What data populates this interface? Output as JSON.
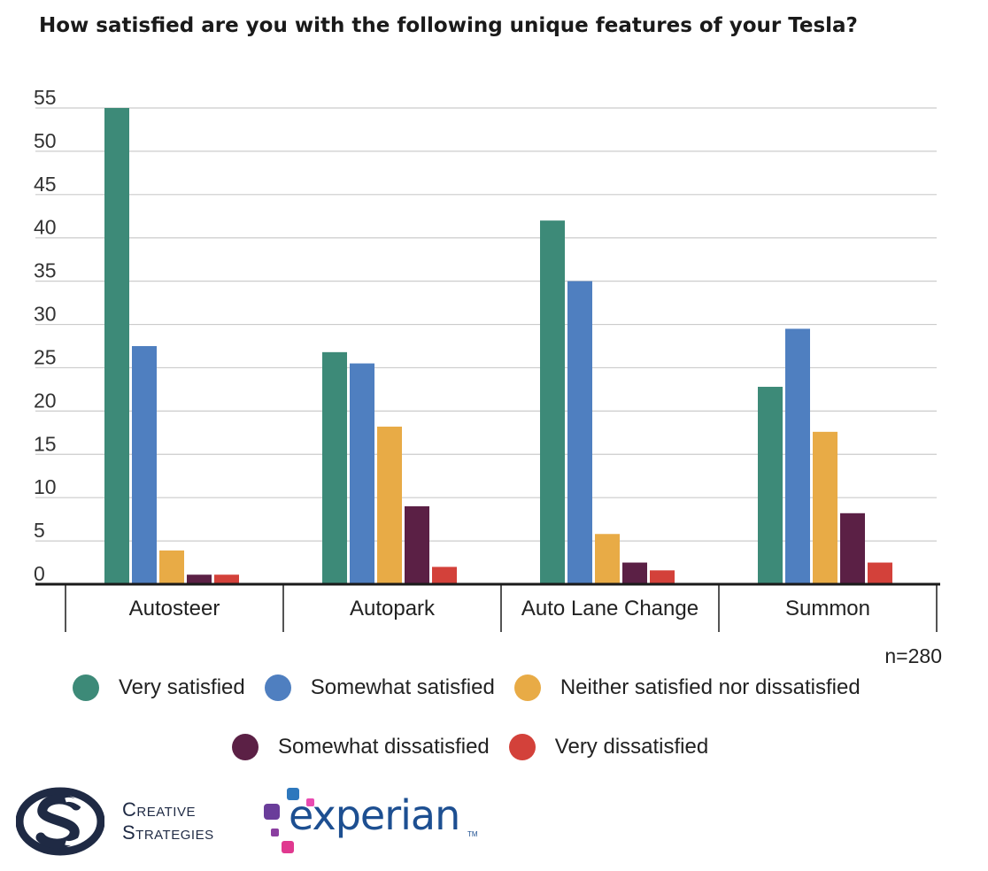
{
  "chart_data": {
    "type": "bar",
    "title": "How satisfied are you with the following unique features of your Tesla?",
    "categories": [
      "Autosteer",
      "Autopark",
      "Auto Lane Change",
      "Summon"
    ],
    "series": [
      {
        "name": "Very satisfied",
        "color": "#3d8a78",
        "values": [
          55,
          26.8,
          42,
          22.8
        ]
      },
      {
        "name": "Somewhat satisfied",
        "color": "#4f7fc0",
        "values": [
          27.5,
          25.5,
          35,
          29.5
        ]
      },
      {
        "name": "Neither satisfied nor dissatisfied",
        "color": "#e8ab46",
        "values": [
          3.9,
          18.2,
          5.8,
          17.6
        ]
      },
      {
        "name": "Somewhat dissatisfied",
        "color": "#5b2045",
        "values": [
          1.1,
          9,
          2.5,
          8.2
        ]
      },
      {
        "name": "Very dissatisfied",
        "color": "#d3413a",
        "values": [
          1.1,
          2,
          1.6,
          2.5
        ]
      }
    ],
    "ylim": [
      0,
      55
    ],
    "yticks": [
      0,
      5,
      10,
      15,
      20,
      25,
      30,
      35,
      40,
      45,
      50,
      55
    ],
    "grid": true,
    "legend": "bottom",
    "note": "n=280"
  },
  "logos": {
    "creative_strategies": {
      "line1": "Creative",
      "line2": "Strategies"
    },
    "experian": {
      "word": "experian",
      "tm": "TM"
    }
  }
}
